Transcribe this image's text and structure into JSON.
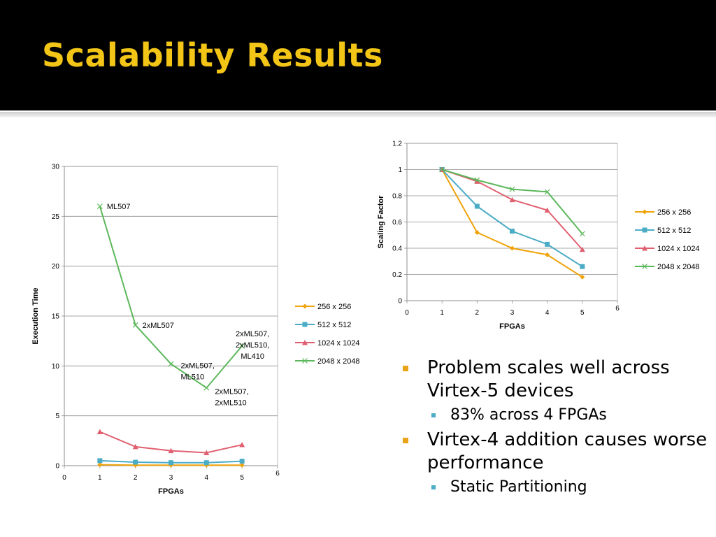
{
  "slide": {
    "title": "Scalability Results",
    "bullets": [
      {
        "text": "Problem scales well across Virtex-5 devices",
        "sub": [
          "83% across 4 FPGAs"
        ]
      },
      {
        "text": "Virtex-4 addition causes worse performance",
        "sub": [
          "Static Partitioning"
        ]
      }
    ]
  },
  "chart_data": [
    {
      "type": "line",
      "title": "",
      "xlabel": "FPGAs",
      "ylabel": "Execution Time",
      "xlim": [
        0,
        6
      ],
      "ylim": [
        0,
        30
      ],
      "yticks": [
        0,
        5,
        10,
        15,
        20,
        25,
        30
      ],
      "xticks": [
        0,
        1,
        2,
        3,
        4,
        5,
        6
      ],
      "grid": true,
      "legend": "right",
      "x": [
        1,
        2,
        3,
        4,
        5
      ],
      "series": [
        {
          "name": "256 x 256",
          "values": [
            0.1,
            0.05,
            0.05,
            0.05,
            0.05
          ],
          "color": "#f0a30a",
          "marker": "diamond"
        },
        {
          "name": "512 x 512",
          "values": [
            0.5,
            0.35,
            0.3,
            0.3,
            0.45
          ],
          "color": "#4bacc6",
          "marker": "square"
        },
        {
          "name": "1024 x 1024",
          "values": [
            3.4,
            1.9,
            1.5,
            1.3,
            2.1
          ],
          "color": "#e06070",
          "marker": "triangle"
        },
        {
          "name": "2048 x 2048",
          "values": [
            26.0,
            14.1,
            10.2,
            7.8,
            12.0
          ],
          "color": "#5cb85c",
          "marker": "x"
        }
      ],
      "annotations": [
        {
          "lines": [
            "ML507"
          ],
          "x": 1,
          "y": 26.0
        },
        {
          "lines": [
            "2xML507"
          ],
          "x": 2,
          "y": 14.1
        },
        {
          "lines": [
            "2xML507,",
            "ML510"
          ],
          "x": 3,
          "y": 10.2
        },
        {
          "lines": [
            "2xML507,",
            "2xML510"
          ],
          "x": 4,
          "y": 7.8
        },
        {
          "lines": [
            "2xML507,",
            "2xML510,",
            "ML410"
          ],
          "x": 5,
          "y": 12.0
        }
      ]
    },
    {
      "type": "line",
      "title": "",
      "xlabel": "FPGAs",
      "ylabel": "Scaling Factor",
      "xlim": [
        0,
        6
      ],
      "ylim": [
        0,
        1.2
      ],
      "yticks": [
        0,
        0.2,
        0.4,
        0.6,
        0.8,
        1,
        1.2
      ],
      "xticks": [
        0,
        1,
        2,
        3,
        4,
        5,
        6
      ],
      "grid": true,
      "legend": "right",
      "x": [
        1,
        2,
        3,
        4,
        5
      ],
      "series": [
        {
          "name": "256 x 256",
          "values": [
            1.0,
            0.52,
            0.4,
            0.35,
            0.18
          ],
          "color": "#f0a30a",
          "marker": "diamond"
        },
        {
          "name": "512 x 512",
          "values": [
            1.0,
            0.72,
            0.53,
            0.43,
            0.26
          ],
          "color": "#4bacc6",
          "marker": "square"
        },
        {
          "name": "1024 x 1024",
          "values": [
            1.0,
            0.91,
            0.77,
            0.69,
            0.39
          ],
          "color": "#e06070",
          "marker": "triangle"
        },
        {
          "name": "2048 x 2048",
          "values": [
            1.0,
            0.92,
            0.85,
            0.83,
            0.51
          ],
          "color": "#5cb85c",
          "marker": "x"
        }
      ]
    }
  ]
}
